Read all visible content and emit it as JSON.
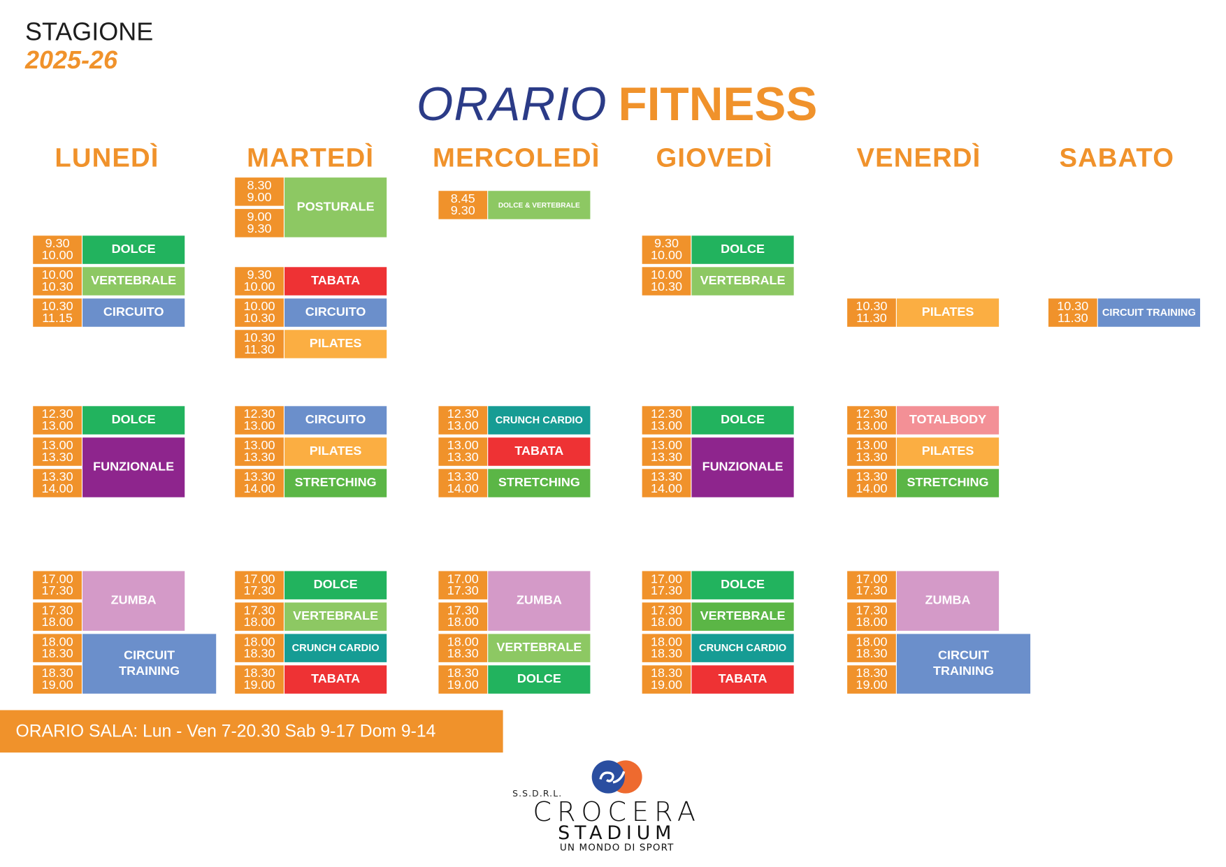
{
  "header": {
    "season_label": "STAGIONE",
    "season_year": "2025-26",
    "title_light": "ORARIO",
    "title_bold": "FITNESS"
  },
  "colors": {
    "time": "#F0922B",
    "title_navy": "#2B3B87",
    "accent": "#F0922B"
  },
  "days": [
    {
      "name": "LUNEDÌ",
      "sessions": [
        {
          "times": [
            [
              "9.30",
              "10.00"
            ]
          ],
          "label": "DOLCE",
          "color": "#22B35E"
        },
        {
          "times": [
            [
              "10.00",
              "10.30"
            ]
          ],
          "label": "VERTEBRALE",
          "color": "#8DC863"
        },
        {
          "times": [
            [
              "10.30",
              "11.15"
            ]
          ],
          "label": "CIRCUITO",
          "color": "#6B8FCB"
        },
        {
          "times": [
            [
              "12.30",
              "13.00"
            ]
          ],
          "label": "DOLCE",
          "color": "#22B35E"
        },
        {
          "times": [
            [
              "13.00",
              "13.30"
            ],
            [
              "13.30",
              "14.00"
            ]
          ],
          "label": "FUNZIONALE",
          "color": "#8E258D"
        },
        {
          "times": [
            [
              "17.00",
              "17.30"
            ],
            [
              "17.30",
              "18.00"
            ]
          ],
          "label": "ZUMBA",
          "color": "#D49AC8"
        },
        {
          "times": [
            [
              "18.00",
              "18.30"
            ],
            [
              "18.30",
              "19.00"
            ]
          ],
          "label": "CIRCUIT TRAINING",
          "color": "#6B8FCB"
        }
      ]
    },
    {
      "name": "MARTEDÌ",
      "sessions": [
        {
          "times": [
            [
              "8.30",
              "9.00"
            ],
            [
              "9.00",
              "9.30"
            ]
          ],
          "label": "POSTURALE",
          "color": "#8DC863"
        },
        {
          "times": [
            [
              "9.30",
              "10.00"
            ]
          ],
          "label": "TABATA",
          "color": "#EE3234"
        },
        {
          "times": [
            [
              "10.00",
              "10.30"
            ]
          ],
          "label": "CIRCUITO",
          "color": "#6B8FCB"
        },
        {
          "times": [
            [
              "10.30",
              "11.30"
            ]
          ],
          "label": "PILATES",
          "color": "#FBAE42"
        },
        {
          "times": [
            [
              "12.30",
              "13.00"
            ]
          ],
          "label": "CIRCUITO",
          "color": "#6B8FCB"
        },
        {
          "times": [
            [
              "13.00",
              "13.30"
            ]
          ],
          "label": "PILATES",
          "color": "#FBAE42"
        },
        {
          "times": [
            [
              "13.30",
              "14.00"
            ]
          ],
          "label": "STRETCHING",
          "color": "#5BB646"
        },
        {
          "times": [
            [
              "17.00",
              "17.30"
            ]
          ],
          "label": "DOLCE",
          "color": "#22B35E"
        },
        {
          "times": [
            [
              "17.30",
              "18.00"
            ]
          ],
          "label": "VERTEBRALE",
          "color": "#8DC863"
        },
        {
          "times": [
            [
              "18.00",
              "18.30"
            ]
          ],
          "label": "CRUNCH CARDIO",
          "color": "#169C94"
        },
        {
          "times": [
            [
              "18.30",
              "19.00"
            ]
          ],
          "label": "TABATA",
          "color": "#EE3234"
        }
      ]
    },
    {
      "name": "MERCOLEDÌ",
      "sessions": [
        {
          "times": [
            [
              "8.45",
              "9.30"
            ]
          ],
          "label": "DOLCE & VERTEBRALE",
          "color": "#8DC863"
        },
        {
          "times": [
            [
              "12.30",
              "13.00"
            ]
          ],
          "label": "CRUNCH CARDIO",
          "color": "#169C94"
        },
        {
          "times": [
            [
              "13.00",
              "13.30"
            ]
          ],
          "label": "TABATA",
          "color": "#EE3234"
        },
        {
          "times": [
            [
              "13.30",
              "14.00"
            ]
          ],
          "label": "STRETCHING",
          "color": "#5BB646"
        },
        {
          "times": [
            [
              "17.00",
              "17.30"
            ],
            [
              "17.30",
              "18.00"
            ]
          ],
          "label": "ZUMBA",
          "color": "#D49AC8"
        },
        {
          "times": [
            [
              "18.00",
              "18.30"
            ]
          ],
          "label": "VERTEBRALE",
          "color": "#8DC863"
        },
        {
          "times": [
            [
              "18.30",
              "19.00"
            ]
          ],
          "label": "DOLCE",
          "color": "#22B35E"
        }
      ]
    },
    {
      "name": "GIOVEDÌ",
      "sessions": [
        {
          "times": [
            [
              "9.30",
              "10.00"
            ]
          ],
          "label": "DOLCE",
          "color": "#22B35E"
        },
        {
          "times": [
            [
              "10.00",
              "10.30"
            ]
          ],
          "label": "VERTEBRALE",
          "color": "#8DC863"
        },
        {
          "times": [
            [
              "12.30",
              "13.00"
            ]
          ],
          "label": "DOLCE",
          "color": "#22B35E"
        },
        {
          "times": [
            [
              "13.00",
              "13.30"
            ],
            [
              "13.30",
              "14.00"
            ]
          ],
          "label": "FUNZIONALE",
          "color": "#8E258D"
        },
        {
          "times": [
            [
              "17.00",
              "17.30"
            ]
          ],
          "label": "DOLCE",
          "color": "#22B35E"
        },
        {
          "times": [
            [
              "17.30",
              "18.00"
            ]
          ],
          "label": "VERTEBRALE",
          "color": "#5BB646"
        },
        {
          "times": [
            [
              "18.00",
              "18.30"
            ]
          ],
          "label": "CRUNCH CARDIO",
          "color": "#169C94"
        },
        {
          "times": [
            [
              "18.30",
              "19.00"
            ]
          ],
          "label": "TABATA",
          "color": "#EE3234"
        }
      ]
    },
    {
      "name": "VENERDÌ",
      "sessions": [
        {
          "times": [
            [
              "10.30",
              "11.30"
            ]
          ],
          "label": "PILATES",
          "color": "#FBAE42"
        },
        {
          "times": [
            [
              "12.30",
              "13.00"
            ]
          ],
          "label": "TOTALBODY",
          "color": "#F39096"
        },
        {
          "times": [
            [
              "13.00",
              "13.30"
            ]
          ],
          "label": "PILATES",
          "color": "#FBAE42"
        },
        {
          "times": [
            [
              "13.30",
              "14.00"
            ]
          ],
          "label": "STRETCHING",
          "color": "#5BB646"
        },
        {
          "times": [
            [
              "17.00",
              "17.30"
            ],
            [
              "17.30",
              "18.00"
            ]
          ],
          "label": "ZUMBA",
          "color": "#D49AC8"
        },
        {
          "times": [
            [
              "18.00",
              "18.30"
            ],
            [
              "18.30",
              "19.00"
            ]
          ],
          "label": "CIRCUIT TRAINING",
          "color": "#6B8FCB"
        }
      ]
    },
    {
      "name": "SABATO",
      "sessions": [
        {
          "times": [
            [
              "10.30",
              "11.30"
            ]
          ],
          "label": "CIRCUIT TRAINING",
          "color": "#6B8FCB"
        }
      ]
    }
  ],
  "footer": {
    "hours": "ORARIO SALA: Lun - Ven 7-20.30 Sab 9-17 Dom 9-14"
  },
  "logo": {
    "prefix": "S.S.D.R.L.",
    "name": "CROCERA",
    "sub": "STADIUM",
    "tagline": "UN MONDO DI SPORT",
    "circle_blue": "#2A4EA0",
    "circle_orange": "#EE6A2F"
  }
}
